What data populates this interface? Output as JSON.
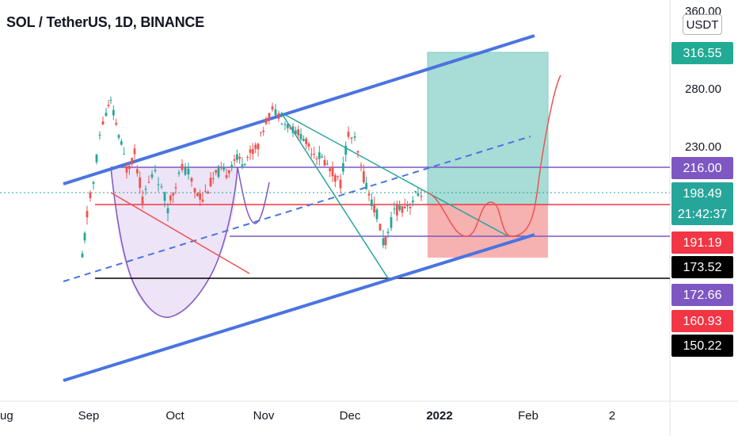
{
  "symbol_title": "SOL / TetherUS, 1D, BINANCE",
  "currency_button": "USDT",
  "chart_data": {
    "type": "candlestick",
    "symbol": "SOL / TetherUS",
    "interval": "1D",
    "exchange": "BINANCE",
    "y_axis_ticks": [
      "360.00",
      "280.00",
      "230.00"
    ],
    "x_axis_ticks": [
      "ug",
      "Sep",
      "Oct",
      "Nov",
      "Dec",
      "2022",
      "Feb",
      "2"
    ],
    "price_labels": [
      {
        "text": "316.55",
        "color": "#22ab94",
        "text_color": "#ffffff"
      },
      {
        "text": "216.00",
        "color": "#7e57c2",
        "text_color": "#ffffff"
      },
      {
        "text": "198.49",
        "color": "#26a69a",
        "text_color": "#ffffff"
      },
      {
        "text": "21:42:37",
        "color": "#26a69a",
        "text_color": "#ffffff"
      },
      {
        "text": "191.19",
        "color": "#f23645",
        "text_color": "#ffffff"
      },
      {
        "text": "173.52",
        "color": "#000000",
        "text_color": "#ffffff"
      },
      {
        "text": "172.66",
        "color": "#7e57c2",
        "text_color": "#ffffff"
      },
      {
        "text": "160.93",
        "color": "#f23645",
        "text_color": "#ffffff"
      },
      {
        "text": "150.22",
        "color": "#000000",
        "text_color": "#ffffff"
      }
    ],
    "horizontal_levels": [
      {
        "value": 216.0,
        "color": "#7e57c2"
      },
      {
        "value": 198.49,
        "color": "#26a69a",
        "style": "dotted"
      },
      {
        "value": 191.19,
        "color": "#f23645"
      },
      {
        "value": 172.66,
        "color": "#7e57c2"
      },
      {
        "value": 150.22,
        "color": "#000000"
      }
    ],
    "position_tool": {
      "target": 316.55,
      "entry": 191.19,
      "stop": 160.93
    },
    "colors": {
      "up": "#26a69a",
      "down": "#ef5350",
      "channel": "#4a74e0",
      "cup_fill": "#ede4f7",
      "cup_line": "#7e57c2",
      "projection": "#ef5350",
      "wedge": "#26a69a",
      "profit_fill": "#a7ddd6",
      "loss_fill": "#f6b1b1"
    }
  }
}
